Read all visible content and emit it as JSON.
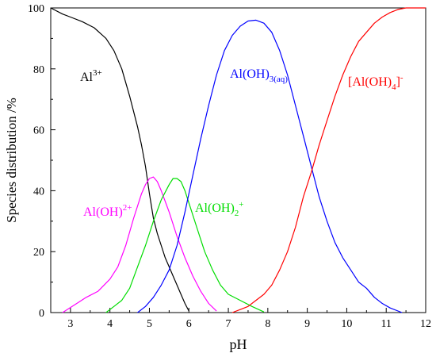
{
  "chart_data": {
    "type": "line",
    "xlabel": "pH",
    "ylabel": "Species distribution /%",
    "xlim": [
      2.5,
      12
    ],
    "ylim": [
      0,
      100
    ],
    "x_ticks": [
      "3",
      "4",
      "5",
      "6",
      "7",
      "8",
      "9",
      "10",
      "11",
      "12"
    ],
    "y_ticks": [
      "0",
      "20",
      "40",
      "60",
      "80",
      "100"
    ],
    "grid": false,
    "series": [
      {
        "key": "al3",
        "color": "#000000",
        "label": {
          "main": "Al",
          "sup": "3+",
          "sub": "",
          "tail": ""
        },
        "points": [
          [
            2.5,
            100
          ],
          [
            2.8,
            98
          ],
          [
            3.0,
            97
          ],
          [
            3.3,
            95.5
          ],
          [
            3.6,
            93.5
          ],
          [
            3.9,
            90
          ],
          [
            4.1,
            86
          ],
          [
            4.3,
            80
          ],
          [
            4.5,
            71
          ],
          [
            4.7,
            61
          ],
          [
            4.8,
            55
          ],
          [
            4.9,
            48
          ],
          [
            5.0,
            39
          ],
          [
            5.1,
            31
          ],
          [
            5.2,
            26
          ],
          [
            5.3,
            22
          ],
          [
            5.4,
            18
          ],
          [
            5.5,
            15
          ],
          [
            5.6,
            12
          ],
          [
            5.7,
            9
          ],
          [
            5.8,
            6
          ],
          [
            5.9,
            3
          ],
          [
            6.0,
            0.5
          ]
        ]
      },
      {
        "key": "aloh2",
        "color": "#ff00ff",
        "label": {
          "main": "Al(OH)",
          "sup": "2+",
          "sub": "",
          "tail": ""
        },
        "points": [
          [
            2.8,
            0
          ],
          [
            3.1,
            2.5
          ],
          [
            3.4,
            5
          ],
          [
            3.7,
            7
          ],
          [
            4.0,
            11
          ],
          [
            4.2,
            15
          ],
          [
            4.4,
            22
          ],
          [
            4.6,
            31
          ],
          [
            4.8,
            39
          ],
          [
            4.9,
            42
          ],
          [
            5.0,
            44
          ],
          [
            5.1,
            44.5
          ],
          [
            5.2,
            43
          ],
          [
            5.3,
            40
          ],
          [
            5.5,
            33
          ],
          [
            5.7,
            25
          ],
          [
            5.9,
            18
          ],
          [
            6.1,
            12
          ],
          [
            6.3,
            7
          ],
          [
            6.5,
            3
          ],
          [
            6.7,
            0.5
          ]
        ]
      },
      {
        "key": "aloh2p",
        "color": "#00dd00",
        "label": {
          "main": "Al(OH)",
          "sup": "+",
          "sub": "2",
          "tail": ""
        },
        "points": [
          [
            3.9,
            0
          ],
          [
            4.1,
            2
          ],
          [
            4.3,
            4
          ],
          [
            4.5,
            8
          ],
          [
            4.7,
            15
          ],
          [
            4.9,
            22
          ],
          [
            5.1,
            30
          ],
          [
            5.3,
            37
          ],
          [
            5.5,
            42
          ],
          [
            5.6,
            44
          ],
          [
            5.7,
            44
          ],
          [
            5.8,
            43
          ],
          [
            5.9,
            40
          ],
          [
            6.0,
            36
          ],
          [
            6.2,
            28
          ],
          [
            6.4,
            20
          ],
          [
            6.6,
            14
          ],
          [
            6.8,
            9
          ],
          [
            7.0,
            6
          ],
          [
            7.3,
            4
          ],
          [
            7.6,
            2
          ],
          [
            7.9,
            0.2
          ]
        ]
      },
      {
        "key": "aloh3",
        "color": "#0000ff",
        "label": {
          "main": "Al(OH)",
          "sup": "",
          "sub": "3(aq)",
          "tail": ""
        },
        "points": [
          [
            4.7,
            0
          ],
          [
            4.9,
            2
          ],
          [
            5.1,
            5
          ],
          [
            5.3,
            9
          ],
          [
            5.5,
            14
          ],
          [
            5.7,
            22
          ],
          [
            5.9,
            33
          ],
          [
            6.1,
            45
          ],
          [
            6.3,
            57
          ],
          [
            6.5,
            68
          ],
          [
            6.7,
            78
          ],
          [
            6.9,
            86
          ],
          [
            7.1,
            91
          ],
          [
            7.3,
            94
          ],
          [
            7.5,
            95.7
          ],
          [
            7.7,
            96
          ],
          [
            7.9,
            95
          ],
          [
            8.1,
            92
          ],
          [
            8.3,
            86
          ],
          [
            8.5,
            78
          ],
          [
            8.7,
            68
          ],
          [
            8.9,
            58
          ],
          [
            9.1,
            48
          ],
          [
            9.3,
            38
          ],
          [
            9.5,
            30
          ],
          [
            9.7,
            23
          ],
          [
            9.9,
            18
          ],
          [
            10.1,
            14
          ],
          [
            10.3,
            10
          ],
          [
            10.5,
            8
          ],
          [
            10.7,
            5
          ],
          [
            10.9,
            3
          ],
          [
            11.1,
            1.5
          ],
          [
            11.4,
            0
          ]
        ]
      },
      {
        "key": "aloh4",
        "color": "#ff0000",
        "label": {
          "main": "[Al(OH)",
          "sup": "",
          "sub": "4",
          "tail": "]",
          "tailsup": "-"
        },
        "points": [
          [
            7.1,
            0
          ],
          [
            7.3,
            1
          ],
          [
            7.5,
            2
          ],
          [
            7.7,
            4
          ],
          [
            7.9,
            6
          ],
          [
            8.1,
            9
          ],
          [
            8.3,
            14
          ],
          [
            8.5,
            20
          ],
          [
            8.7,
            28
          ],
          [
            8.9,
            38
          ],
          [
            9.1,
            46
          ],
          [
            9.3,
            55
          ],
          [
            9.5,
            63
          ],
          [
            9.7,
            71
          ],
          [
            9.9,
            78
          ],
          [
            10.1,
            84
          ],
          [
            10.3,
            89
          ],
          [
            10.5,
            92
          ],
          [
            10.7,
            95
          ],
          [
            10.9,
            97
          ],
          [
            11.1,
            98.5
          ],
          [
            11.3,
            99.5
          ],
          [
            11.5,
            100
          ],
          [
            12.0,
            100
          ]
        ]
      }
    ]
  }
}
